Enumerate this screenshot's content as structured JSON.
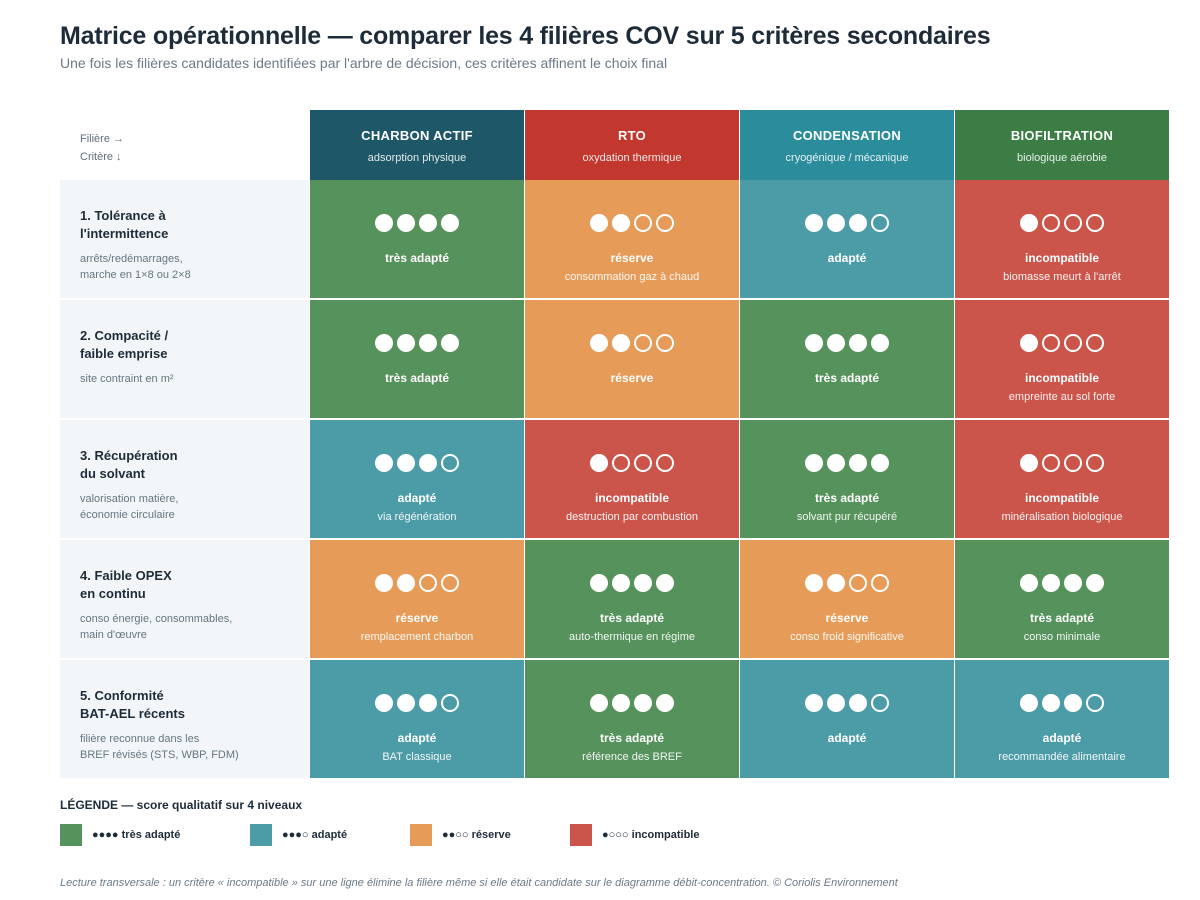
{
  "header": {
    "title": "Matrice opérationnelle — comparer les 4 filières COV sur 5 critères secondaires",
    "subtitle": "Une fois les filières candidates identifiées par l'arbre de décision, ces critères affinent le choix final"
  },
  "corner": {
    "line1": "Filière →",
    "line2": "Critère ↓"
  },
  "levels": {
    "tres": {
      "color": "#56925c"
    },
    "adapte": {
      "color": "#4c9ca8"
    },
    "reserve": {
      "color": "#e69c58"
    },
    "incompatible": {
      "color": "#cb554a"
    }
  },
  "columns": [
    {
      "name": "CHARBON ACTIF",
      "sub": "adsorption physique",
      "color": "#1d5768"
    },
    {
      "name": "RTO",
      "sub": "oxydation thermique",
      "color": "#c2382f"
    },
    {
      "name": "CONDENSATION",
      "sub": "cryogénique / mécanique",
      "color": "#2b8c9c"
    },
    {
      "name": "BIOFILTRATION",
      "sub": "biologique aérobie",
      "color": "#3b7d45"
    }
  ],
  "rows": [
    {
      "title": "1. Tolérance à\nl'intermittence",
      "sub": "arrêts/redémarrages,\nmarche en 1×8 ou 2×8",
      "cells": [
        {
          "score": 4,
          "level": "tres",
          "label": "très adapté",
          "note": ""
        },
        {
          "score": 2,
          "level": "reserve",
          "label": "réserve",
          "note": "consommation gaz à chaud"
        },
        {
          "score": 3,
          "level": "adapte",
          "label": "adapté",
          "note": ""
        },
        {
          "score": 1,
          "level": "incompatible",
          "label": "incompatible",
          "note": "biomasse meurt à l'arrêt"
        }
      ]
    },
    {
      "title": "2. Compacité /\nfaible emprise",
      "sub": "site contraint en m²",
      "cells": [
        {
          "score": 4,
          "level": "tres",
          "label": "très adapté",
          "note": ""
        },
        {
          "score": 2,
          "level": "reserve",
          "label": "réserve",
          "note": ""
        },
        {
          "score": 4,
          "level": "tres",
          "label": "très adapté",
          "note": ""
        },
        {
          "score": 1,
          "level": "incompatible",
          "label": "incompatible",
          "note": "empreinte au sol forte"
        }
      ]
    },
    {
      "title": "3. Récupération\ndu solvant",
      "sub": "valorisation matière,\néconomie circulaire",
      "cells": [
        {
          "score": 3,
          "level": "adapte",
          "label": "adapté",
          "note": "via régénération"
        },
        {
          "score": 1,
          "level": "incompatible",
          "label": "incompatible",
          "note": "destruction par combustion"
        },
        {
          "score": 4,
          "level": "tres",
          "label": "très adapté",
          "note": "solvant pur récupéré"
        },
        {
          "score": 1,
          "level": "incompatible",
          "label": "incompatible",
          "note": "minéralisation biologique"
        }
      ]
    },
    {
      "title": "4. Faible OPEX\nen continu",
      "sub": "conso énergie, consommables,\nmain d'œuvre",
      "cells": [
        {
          "score": 2,
          "level": "reserve",
          "label": "réserve",
          "note": "remplacement charbon"
        },
        {
          "score": 4,
          "level": "tres",
          "label": "très adapté",
          "note": "auto-thermique en régime"
        },
        {
          "score": 2,
          "level": "reserve",
          "label": "réserve",
          "note": "conso froid significative"
        },
        {
          "score": 4,
          "level": "tres",
          "label": "très adapté",
          "note": "conso minimale"
        }
      ]
    },
    {
      "title": "5. Conformité\nBAT-AEL récents",
      "sub": "filière reconnue dans les\nBREF révisés (STS, WBP, FDM)",
      "cells": [
        {
          "score": 3,
          "level": "adapte",
          "label": "adapté",
          "note": "BAT classique"
        },
        {
          "score": 4,
          "level": "tres",
          "label": "très adapté",
          "note": "référence des BREF"
        },
        {
          "score": 3,
          "level": "adapte",
          "label": "adapté",
          "note": ""
        },
        {
          "score": 3,
          "level": "adapte",
          "label": "adapté",
          "note": "recommandée alimentaire"
        }
      ]
    }
  ],
  "legend": {
    "title": "LÉGENDE — score qualitatif sur 4 niveaux",
    "items": [
      {
        "level": "tres",
        "label": "●●●● très adapté"
      },
      {
        "level": "adapte",
        "label": "●●●○ adapté"
      },
      {
        "level": "reserve",
        "label": "●●○○ réserve"
      },
      {
        "level": "incompatible",
        "label": "●○○○ incompatible"
      }
    ]
  },
  "footnote": "Lecture transversale : un critère « incompatible » sur une ligne élimine la filière même si elle était candidate sur le diagramme débit-concentration. © Coriolis Environnement"
}
